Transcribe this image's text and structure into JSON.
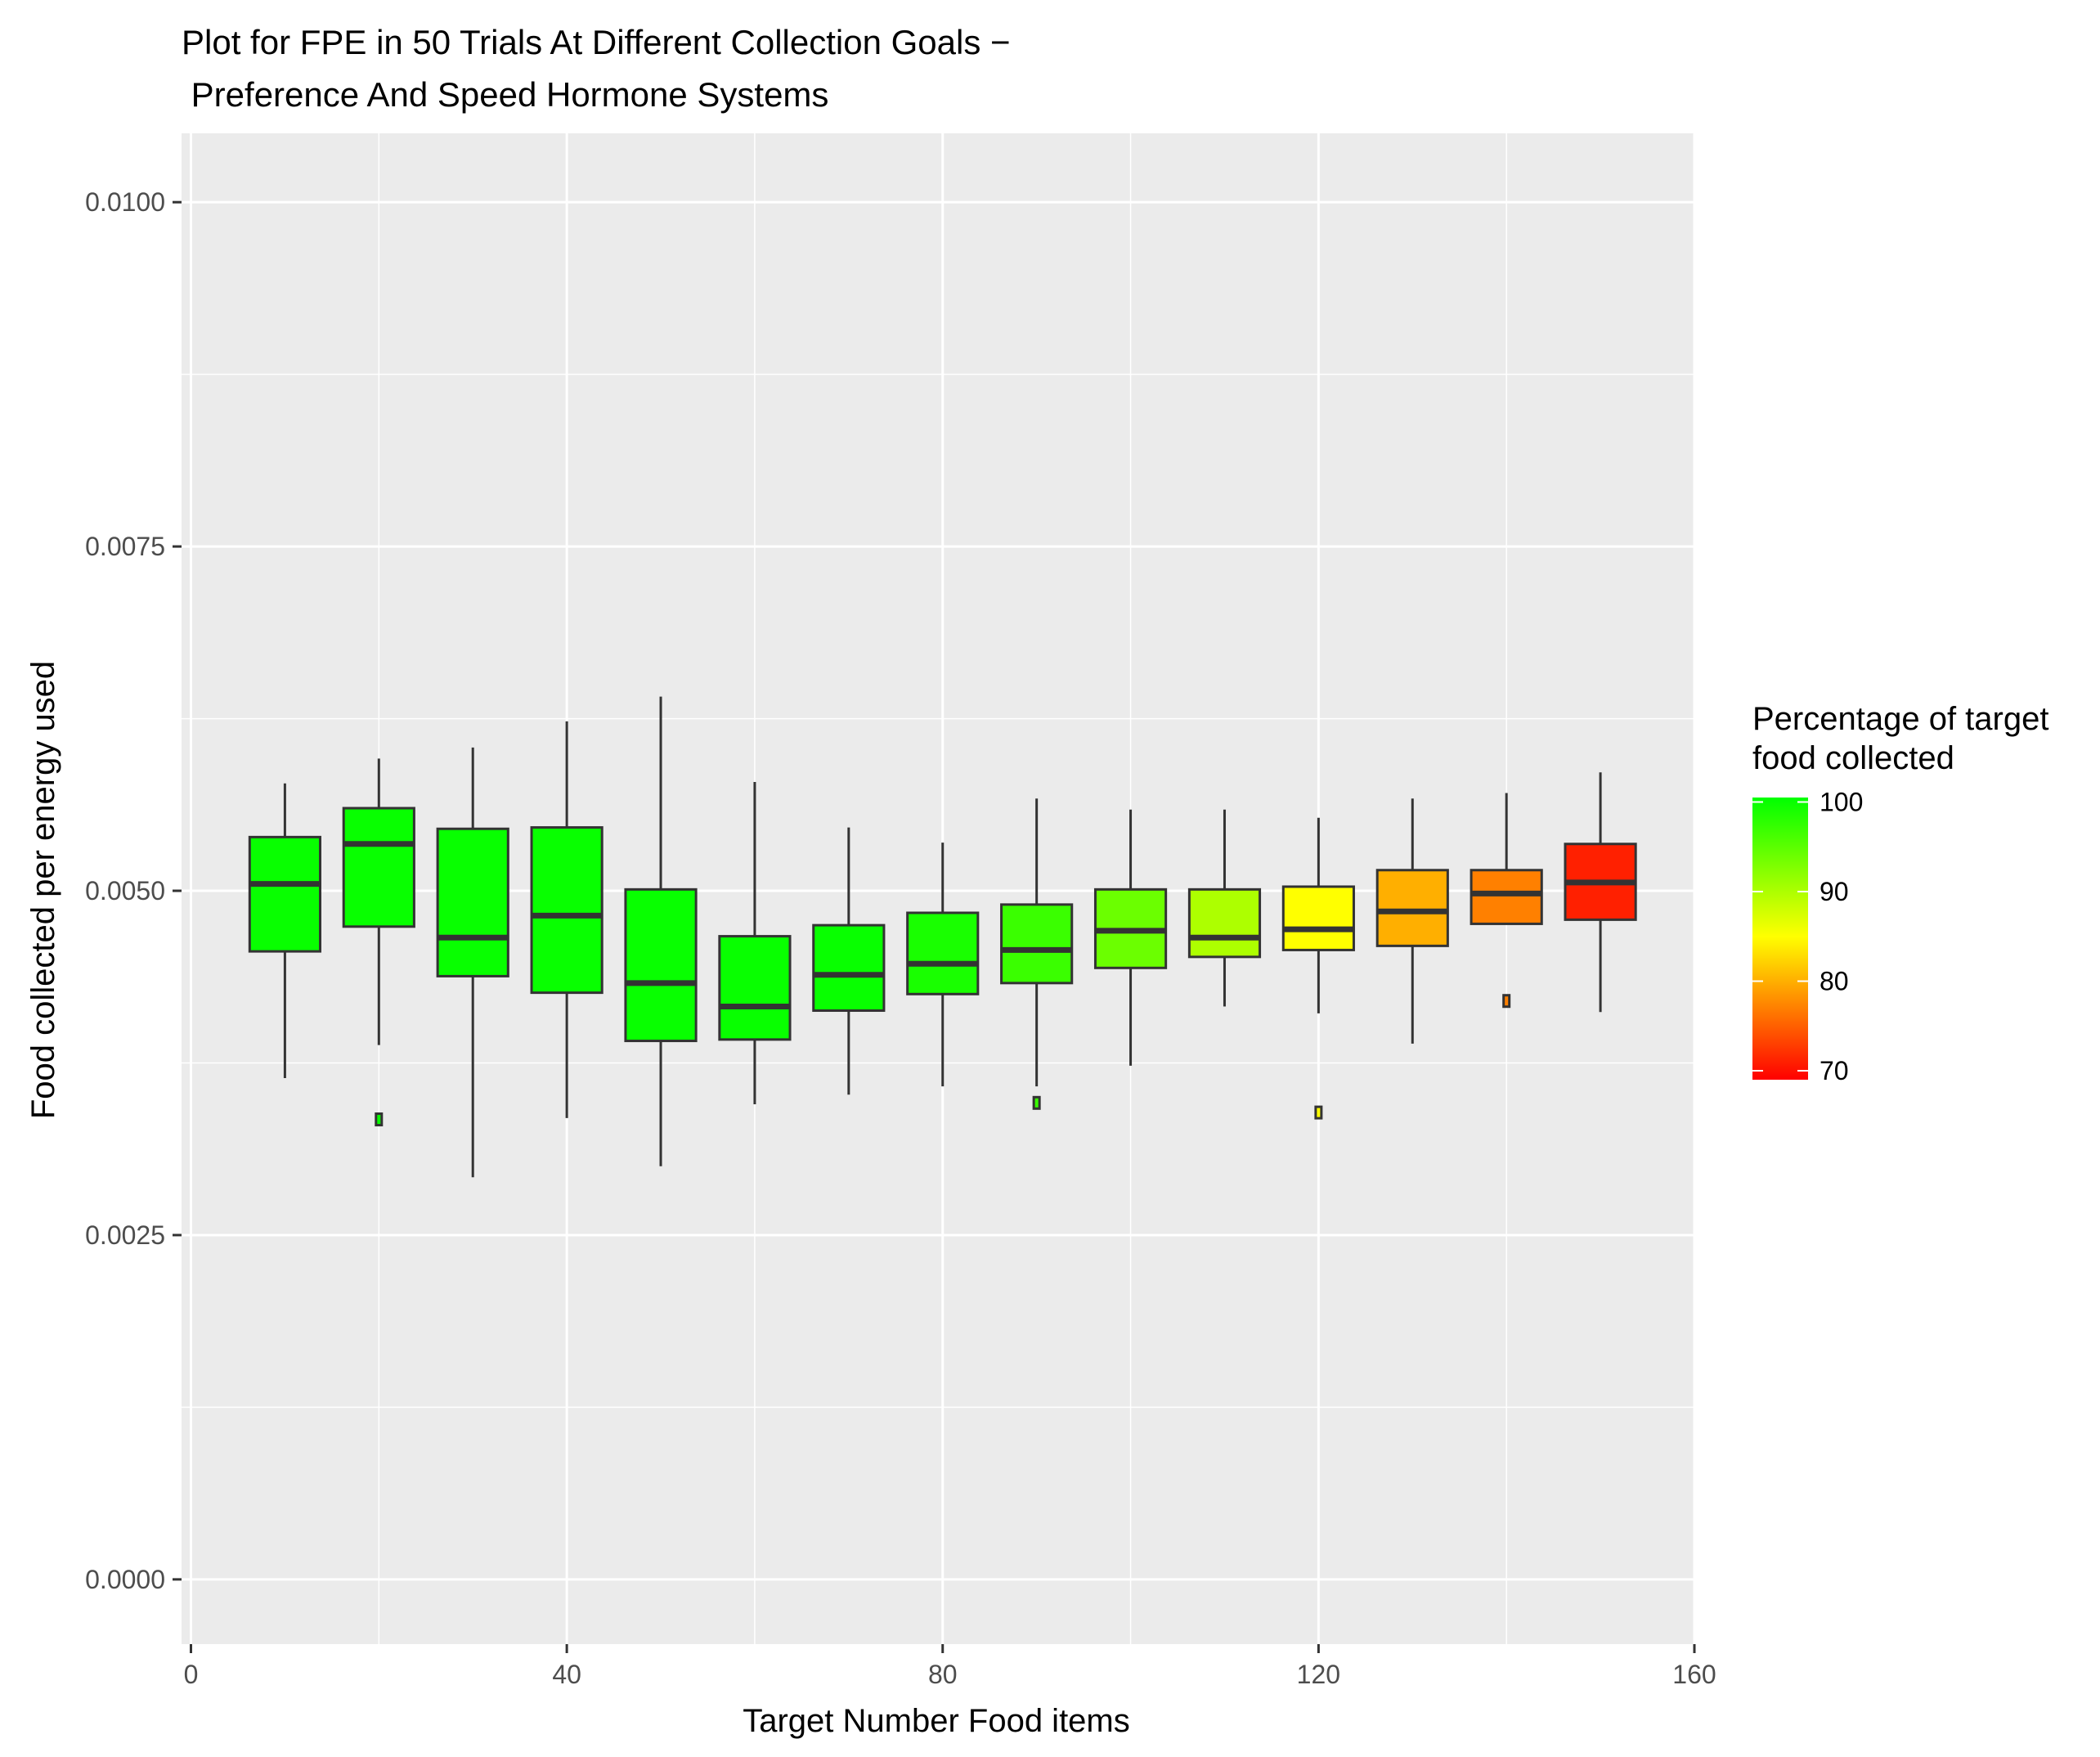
{
  "chart_data": {
    "type": "box",
    "title_lines": [
      "Plot for FPE in 50 Trials At Different Collection Goals −",
      " Preference And Speed Hormone Systems"
    ],
    "xlabel": "Target Number Food items",
    "ylabel": "Food collected per energy used",
    "xlim": [
      -1,
      160
    ],
    "ylim": [
      -0.00047,
      0.0105
    ],
    "x_ticks": [
      0,
      40,
      80,
      120,
      160
    ],
    "x_tick_labels": [
      "0",
      "40",
      "80",
      "120",
      "160"
    ],
    "y_ticks": [
      0,
      0.0025,
      0.005,
      0.0075,
      0.01
    ],
    "y_tick_labels": [
      "0.0000",
      "0.0025",
      "0.0050",
      "0.0075",
      "0.0100"
    ],
    "box_width": 7.5,
    "series": [
      {
        "x": 10,
        "lower_whisker": 0.00364,
        "q1": 0.00456,
        "median": 0.00505,
        "q3": 0.00539,
        "upper_whisker": 0.00578,
        "outliers": [],
        "pct_collected": 100
      },
      {
        "x": 20,
        "lower_whisker": 0.00388,
        "q1": 0.00474,
        "median": 0.00534,
        "q3": 0.0056,
        "upper_whisker": 0.00596,
        "outliers": [
          0.00334
        ],
        "pct_collected": 100
      },
      {
        "x": 30,
        "lower_whisker": 0.00292,
        "q1": 0.00438,
        "median": 0.00466,
        "q3": 0.00545,
        "upper_whisker": 0.00604,
        "outliers": [],
        "pct_collected": 100
      },
      {
        "x": 40,
        "lower_whisker": 0.00335,
        "q1": 0.00426,
        "median": 0.00482,
        "q3": 0.00546,
        "upper_whisker": 0.00623,
        "outliers": [],
        "pct_collected": 100
      },
      {
        "x": 50,
        "lower_whisker": 0.003,
        "q1": 0.00391,
        "median": 0.00433,
        "q3": 0.00501,
        "upper_whisker": 0.00641,
        "outliers": [],
        "pct_collected": 100
      },
      {
        "x": 60,
        "lower_whisker": 0.00345,
        "q1": 0.00392,
        "median": 0.00416,
        "q3": 0.00467,
        "upper_whisker": 0.00579,
        "outliers": [],
        "pct_collected": 100
      },
      {
        "x": 70,
        "lower_whisker": 0.00352,
        "q1": 0.00413,
        "median": 0.00439,
        "q3": 0.00475,
        "upper_whisker": 0.00546,
        "outliers": [],
        "pct_collected": 100
      },
      {
        "x": 80,
        "lower_whisker": 0.00358,
        "q1": 0.00425,
        "median": 0.00447,
        "q3": 0.00484,
        "upper_whisker": 0.00535,
        "outliers": [],
        "pct_collected": 99
      },
      {
        "x": 90,
        "lower_whisker": 0.00358,
        "q1": 0.00433,
        "median": 0.00457,
        "q3": 0.0049,
        "upper_whisker": 0.00567,
        "outliers": [
          0.00346
        ],
        "pct_collected": 97
      },
      {
        "x": 100,
        "lower_whisker": 0.00373,
        "q1": 0.00444,
        "median": 0.00471,
        "q3": 0.00501,
        "upper_whisker": 0.00559,
        "outliers": [],
        "pct_collected": 94
      },
      {
        "x": 110,
        "lower_whisker": 0.00416,
        "q1": 0.00452,
        "median": 0.00466,
        "q3": 0.00501,
        "upper_whisker": 0.00559,
        "outliers": [],
        "pct_collected": 90
      },
      {
        "x": 120,
        "lower_whisker": 0.00411,
        "q1": 0.00457,
        "median": 0.00472,
        "q3": 0.00503,
        "upper_whisker": 0.00553,
        "outliers": [
          0.00339
        ],
        "pct_collected": 85
      },
      {
        "x": 130,
        "lower_whisker": 0.00389,
        "q1": 0.0046,
        "median": 0.00485,
        "q3": 0.00515,
        "upper_whisker": 0.00567,
        "outliers": [],
        "pct_collected": 80
      },
      {
        "x": 140,
        "lower_whisker": 0.00476,
        "q1": 0.00476,
        "median": 0.00498,
        "q3": 0.00515,
        "upper_whisker": 0.00571,
        "outliers": [
          0.0042
        ],
        "pct_collected": 77
      },
      {
        "x": 150,
        "lower_whisker": 0.00412,
        "q1": 0.00479,
        "median": 0.00506,
        "q3": 0.00534,
        "upper_whisker": 0.00586,
        "outliers": [],
        "pct_collected": 71
      }
    ],
    "legend": {
      "title_lines": [
        "Percentage of target",
        "food collected"
      ],
      "range": [
        69,
        100.5
      ],
      "ticks": [
        100,
        90,
        80,
        70
      ],
      "tick_labels": [
        "100",
        "90",
        "80",
        "70"
      ],
      "color_stops": [
        {
          "value": 69,
          "color": "#ff0000"
        },
        {
          "value": 85,
          "color": "#ffff00"
        },
        {
          "value": 100.5,
          "color": "#00ff00"
        }
      ]
    },
    "colors": {
      "panel": "#ebebeb",
      "grid": "#ffffff",
      "box_line": "#333333",
      "median_line": "#333333",
      "text": "#000000",
      "tick_text": "#4d4d4d",
      "tick_mark": "#333333"
    }
  }
}
